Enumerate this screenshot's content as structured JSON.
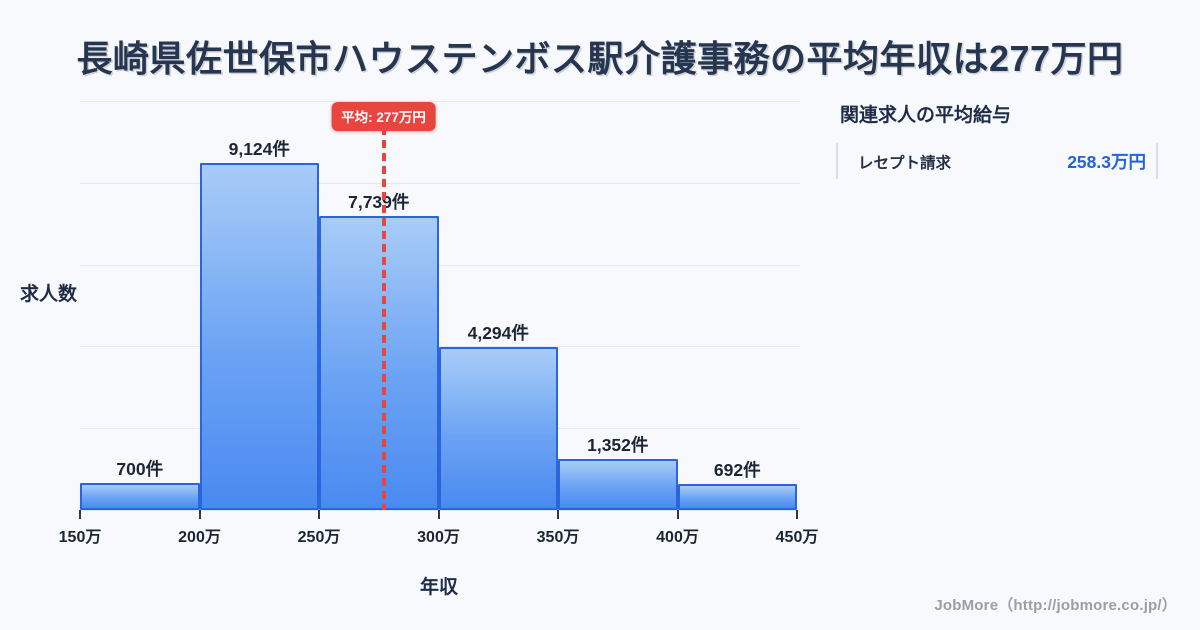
{
  "chart_data": {
    "type": "bar",
    "subtype": "histogram",
    "title": "長崎県佐世保市ハウステンボス駅介護事務の平均年収は277万円",
    "ylabel": "求人数",
    "xlabel": "年収",
    "categories": [
      "150万-200万",
      "200万-250万",
      "250万-300万",
      "300万-350万",
      "350万-400万",
      "400万-450万"
    ],
    "values": [
      700,
      9124,
      7739,
      4294,
      1352,
      692
    ],
    "bar_value_labels": [
      "700件",
      "9,124件",
      "7,739件",
      "4,294件",
      "1,352件",
      "692件"
    ],
    "x_tick_labels": [
      "150万",
      "200万",
      "250万",
      "300万",
      "350万",
      "400万",
      "450万"
    ],
    "x_range_manen": [
      150,
      450
    ],
    "ylim": [
      0,
      10750
    ],
    "gridline_count": 5,
    "grid": "horizontal",
    "legend_position": "none",
    "average_annotation": {
      "label": "平均: 277万円",
      "value_manen": 277
    }
  },
  "side_panel": {
    "heading": "関連求人の平均給与",
    "rows": [
      {
        "label": "レセプト請求",
        "value": "258.3万円"
      }
    ]
  },
  "footer": {
    "credit": "JobMore（http://jobmore.co.jp/）"
  },
  "colors": {
    "background": "#f7f9fc",
    "title_text": "#263550",
    "bar_border": "#2b65dd",
    "bar_fill_top": "#a9ccf7",
    "bar_fill_bottom": "#4a8af0",
    "average_red": "#e8453f",
    "value_blue": "#2563d9",
    "gridline": "#e4e9f1"
  }
}
